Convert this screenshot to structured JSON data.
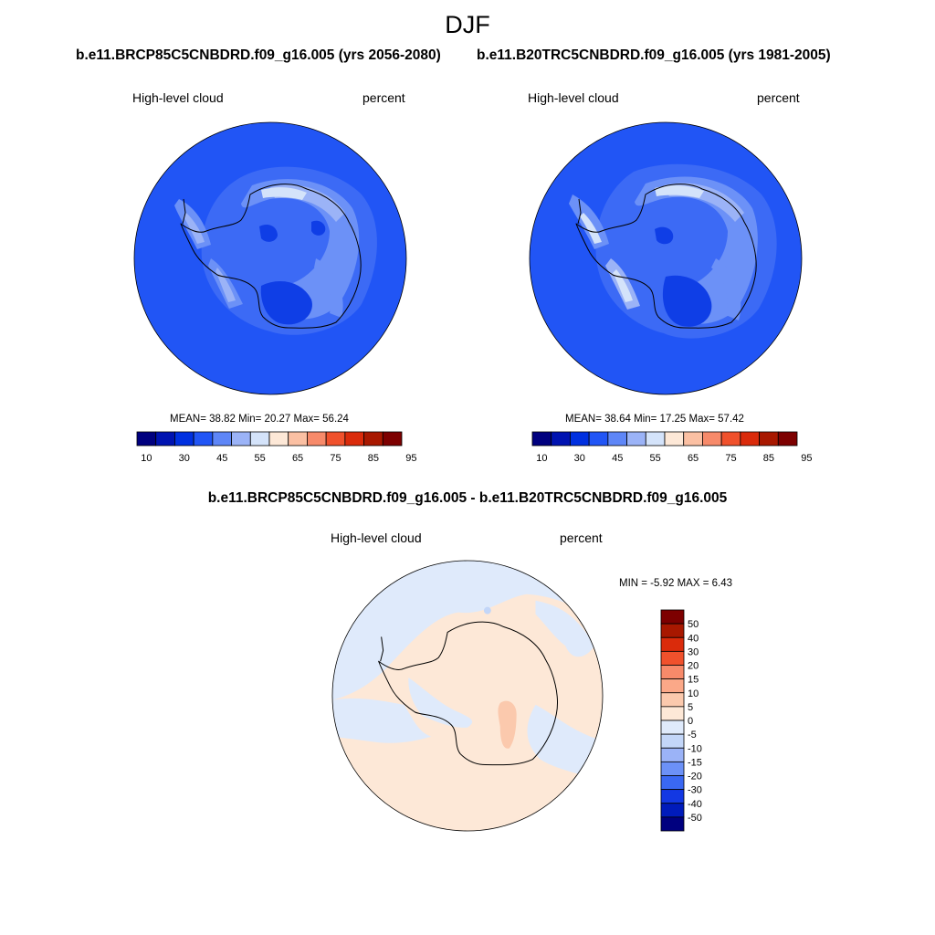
{
  "season": "DJF",
  "panel_left": {
    "case_title": "b.e11.BRCP85C5CNBDRD.f09_g16.005 (yrs 2056-2080)",
    "variable": "High-level cloud",
    "units": "percent",
    "stats": "MEAN=  38.82  Min=  20.27  Max=  56.24"
  },
  "panel_right": {
    "case_title": "b.e11.B20TRC5CNBDRD.f09_g16.005 (yrs 1981-2005)",
    "variable": "High-level cloud",
    "units": "percent",
    "stats": "MEAN=  38.64  Min=  17.25  Max=  57.42"
  },
  "panel_diff": {
    "title": "b.e11.BRCP85C5CNBDRD.f09_g16.005 - b.e11.B20TRC5CNBDRD.f09_g16.005",
    "variable": "High-level cloud",
    "units": "percent",
    "stats": "MIN =  -5.92 MAX =   6.43"
  },
  "field_colorbar": {
    "labels": [
      "10",
      "30",
      "45",
      "55",
      "65",
      "75",
      "85",
      "95"
    ],
    "colors": [
      "#00007f",
      "#0013b1",
      "#0030e0",
      "#2155f5",
      "#5e86f7",
      "#9bb3f7",
      "#d4e3fa",
      "#fde8d7",
      "#fbc0a3",
      "#f78a6a",
      "#f0512c",
      "#da2b0b",
      "#a81800",
      "#7d0000"
    ]
  },
  "diff_colorbar": {
    "labels": [
      "50",
      "40",
      "30",
      "20",
      "15",
      "10",
      "5",
      "0",
      "-5",
      "-10",
      "-15",
      "-20",
      "-30",
      "-40",
      "-50"
    ],
    "colors": [
      "#7d0000",
      "#a81800",
      "#da2b0b",
      "#f0512c",
      "#f78a6a",
      "#fba888",
      "#fbc9ad",
      "#fde8d7",
      "#dfeafb",
      "#c3d6f8",
      "#9bb3f7",
      "#6c91f7",
      "#3a68f3",
      "#1338e3",
      "#001bbb",
      "#00007f"
    ]
  },
  "map_colors": {
    "ocean_base": "#2155f5",
    "mid_blue": "#3c6af5",
    "light_blue": "#6c91f7",
    "pale_blue": "#9bb3f7",
    "very_pale": "#d4e3fa",
    "dark_blue": "#0f3ee6",
    "diff_positive": "#fde8d7",
    "diff_negative": "#dfeafb",
    "diff_strong_positive": "#fbc9ad",
    "diff_strong_negative": "#c3d6f8"
  }
}
